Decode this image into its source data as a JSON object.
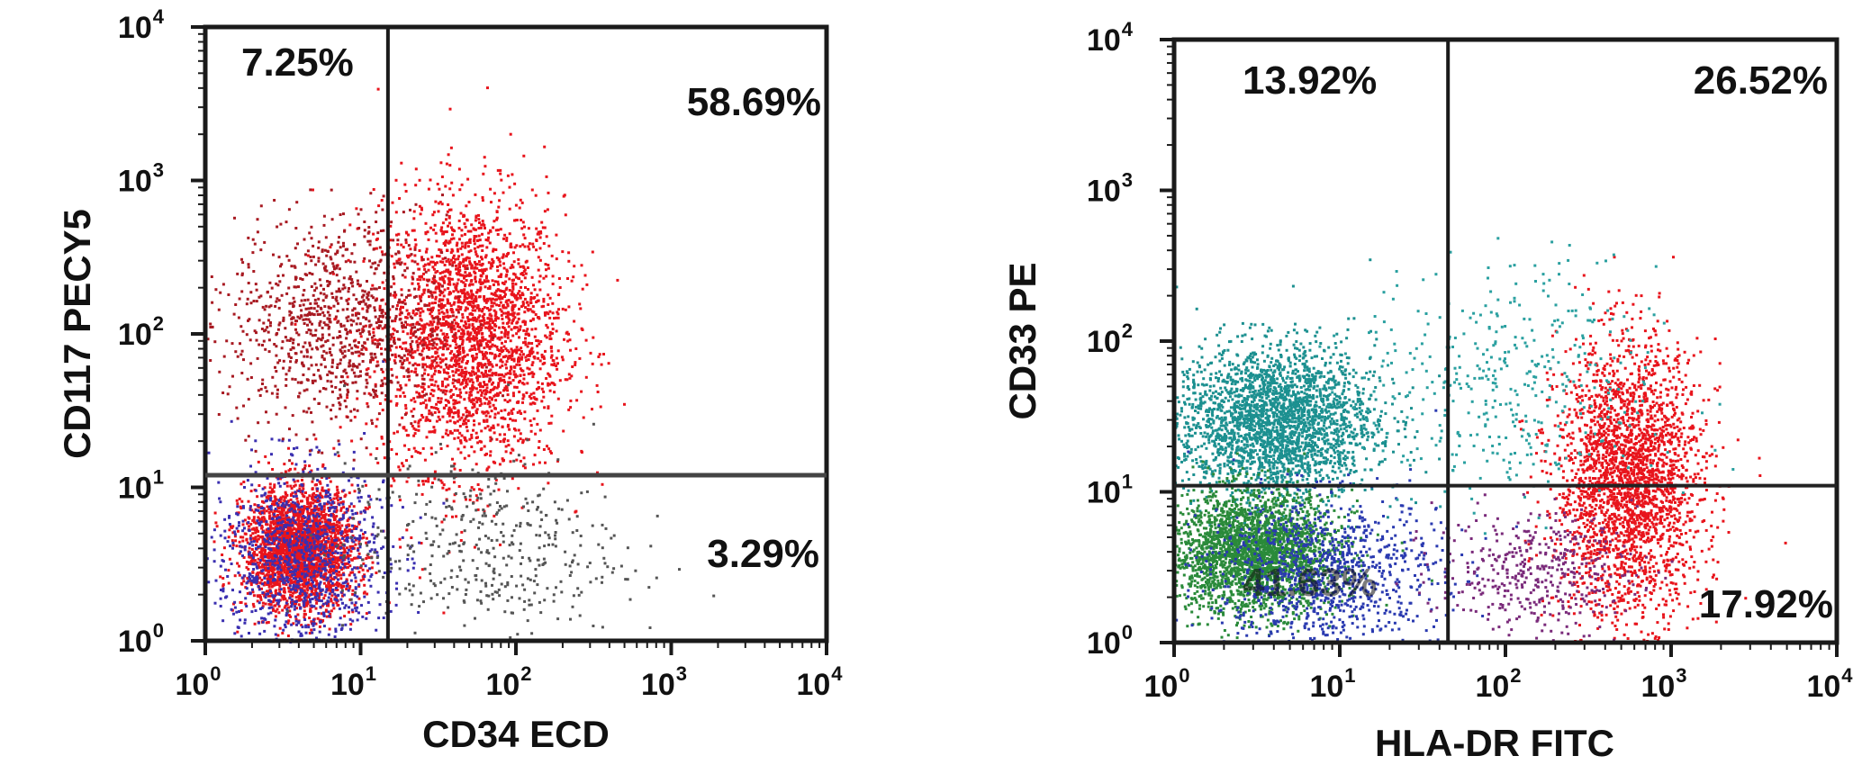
{
  "chart_data": [
    {
      "type": "scatter",
      "subtype": "flow-cytometry-dot-plot",
      "xlabel": "CD34 ECD",
      "ylabel": "CD117 PECY5",
      "xscale": "log",
      "yscale": "log",
      "xlim": [
        1,
        10000
      ],
      "ylim": [
        1,
        10000
      ],
      "x_tick_labels": [
        {
          "base": "10",
          "exp": "0"
        },
        {
          "base": "10",
          "exp": "1"
        },
        {
          "base": "10",
          "exp": "2"
        },
        {
          "base": "10",
          "exp": "3"
        },
        {
          "base": "10",
          "exp": "4"
        }
      ],
      "y_tick_labels": [
        {
          "base": "10",
          "exp": "0"
        },
        {
          "base": "10",
          "exp": "1"
        },
        {
          "base": "10",
          "exp": "2"
        },
        {
          "base": "10",
          "exp": "3"
        },
        {
          "base": "10",
          "exp": "4"
        }
      ],
      "gate_x": 15,
      "gate_y": 12,
      "quadrant_labels": {
        "upper_left": "7.25%",
        "upper_right": "58.69%",
        "lower_right": "3.29%"
      },
      "populations": [
        {
          "color": "#e8141c",
          "center": [
            50,
            100
          ],
          "spread": [
            0.3,
            0.45
          ],
          "density": "high"
        },
        {
          "color": "#e8141c",
          "center": [
            4,
            4
          ],
          "spread": [
            0.18,
            0.2
          ],
          "density": "high"
        },
        {
          "color": "#3a2fb0",
          "center": [
            4,
            3.5
          ],
          "spread": [
            0.28,
            0.3
          ],
          "density": "medium"
        },
        {
          "color": "#a81a22",
          "center": [
            7,
            120
          ],
          "spread": [
            0.35,
            0.35
          ],
          "density": "medium"
        },
        {
          "color": "#555555",
          "center": [
            60,
            4
          ],
          "spread": [
            0.45,
            0.3
          ],
          "density": "low"
        }
      ]
    },
    {
      "type": "scatter",
      "subtype": "flow-cytometry-dot-plot",
      "xlabel": "HLA-DR FITC",
      "ylabel": "CD33 PE",
      "xscale": "log",
      "yscale": "log",
      "xlim": [
        1,
        10000
      ],
      "ylim": [
        1,
        10000
      ],
      "x_tick_labels": [
        {
          "base": "10",
          "exp": "0"
        },
        {
          "base": "10",
          "exp": "1"
        },
        {
          "base": "10",
          "exp": "2"
        },
        {
          "base": "10",
          "exp": "3"
        },
        {
          "base": "10",
          "exp": "4"
        }
      ],
      "y_tick_labels": [
        {
          "base": "10",
          "exp": "0"
        },
        {
          "base": "10",
          "exp": "1"
        },
        {
          "base": "10",
          "exp": "2"
        },
        {
          "base": "10",
          "exp": "3"
        },
        {
          "base": "10",
          "exp": "4"
        }
      ],
      "gate_x": 45,
      "gate_y": 11,
      "quadrant_labels": {
        "upper_left": "13.92%",
        "upper_right": "26.52%",
        "lower_left": "41.63%",
        "lower_right": "17.92%"
      },
      "populations": [
        {
          "color": "#e8141c",
          "center": [
            550,
            12
          ],
          "spread": [
            0.22,
            0.45
          ],
          "density": "high"
        },
        {
          "color": "#1c9090",
          "center": [
            4,
            30
          ],
          "spread": [
            0.3,
            0.25
          ],
          "density": "high"
        },
        {
          "color": "#2a8a3a",
          "center": [
            3,
            4
          ],
          "spread": [
            0.25,
            0.2
          ],
          "density": "high"
        },
        {
          "color": "#2a3ab0",
          "center": [
            8,
            3
          ],
          "spread": [
            0.35,
            0.25
          ],
          "density": "medium"
        },
        {
          "color": "#7a2a7a",
          "center": [
            150,
            3
          ],
          "spread": [
            0.3,
            0.2
          ],
          "density": "low"
        },
        {
          "color": "#2aa0a0",
          "center": [
            100,
            50
          ],
          "spread": [
            0.45,
            0.4
          ],
          "density": "low"
        }
      ]
    }
  ]
}
